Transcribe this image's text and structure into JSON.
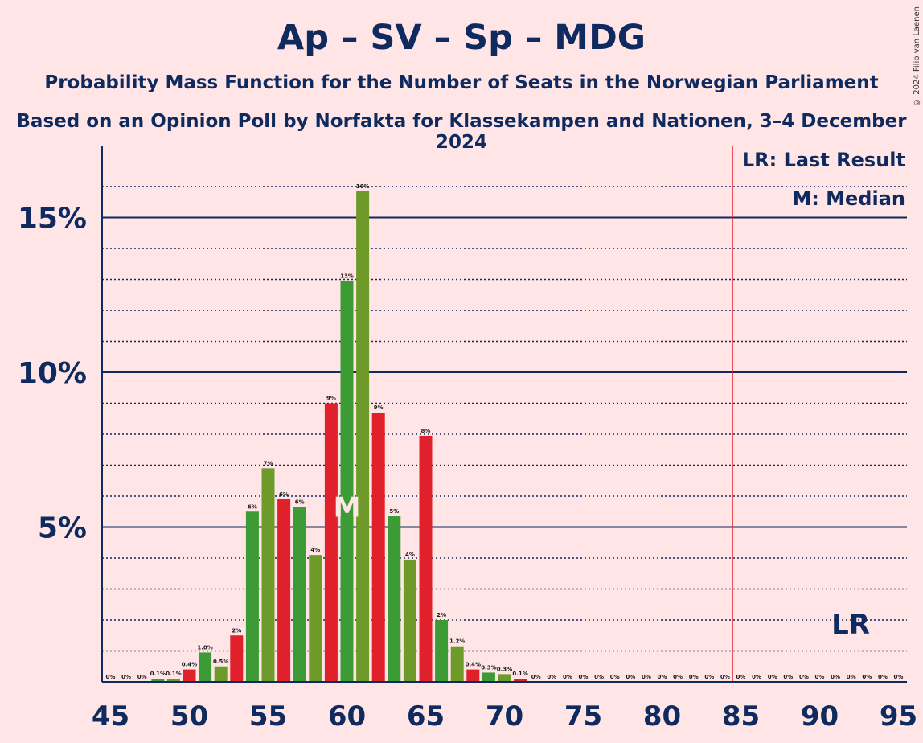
{
  "title": "Ap – SV – Sp – MDG",
  "subtitle_line1": "Probability Mass Function for the Number of Seats in the Norwegian Parliament",
  "subtitle_line2": "Based on an Opinion Poll by Norfakta for Klassekampen and Nationen, 3–4 December 2024",
  "copyright": "© 2024 Filip van Laenen",
  "legend": {
    "last_result": "LR: Last Result",
    "median": "M: Median"
  },
  "colors": {
    "background": "#FFE5E6",
    "axis": "#0E2A5E",
    "green": "#3D9B35",
    "olive": "#6E9A2A",
    "red": "#E0202A",
    "lr_line": "#E0202A"
  },
  "chart_data": {
    "type": "bar",
    "x_range": [
      45,
      95
    ],
    "x_ticks": [
      45,
      50,
      55,
      60,
      65,
      70,
      75,
      80,
      85,
      90,
      95
    ],
    "y_range": [
      0,
      17
    ],
    "y_ticks": [
      {
        "value": 5,
        "label": "5%"
      },
      {
        "value": 10,
        "label": "10%"
      },
      {
        "value": 15,
        "label": "15%"
      }
    ],
    "median_seat": 60,
    "median_label": "M",
    "last_result_seat": 85,
    "last_result_label": "LR",
    "bars": [
      {
        "seat": 45,
        "value": 0,
        "label": "0%"
      },
      {
        "seat": 46,
        "value": 0,
        "label": "0%"
      },
      {
        "seat": 47,
        "value": 0,
        "label": "0%"
      },
      {
        "seat": 48,
        "value": 0.1,
        "label": "0.1%"
      },
      {
        "seat": 49,
        "value": 0.1,
        "label": "0.1%"
      },
      {
        "seat": 50,
        "value": 0.4,
        "label": "0.4%"
      },
      {
        "seat": 51,
        "value": 0.95,
        "label": "1.0%"
      },
      {
        "seat": 52,
        "value": 0.5,
        "label": "0.5%"
      },
      {
        "seat": 53,
        "value": 1.5,
        "label": "2%"
      },
      {
        "seat": 54,
        "value": 5.5,
        "label": "6%"
      },
      {
        "seat": 55,
        "value": 6.9,
        "label": "7%"
      },
      {
        "seat": 56,
        "value": 5.9,
        "label": "6%"
      },
      {
        "seat": 57,
        "value": 5.65,
        "label": "6%"
      },
      {
        "seat": 58,
        "value": 4.1,
        "label": "4%"
      },
      {
        "seat": 59,
        "value": 9.0,
        "label": "9%"
      },
      {
        "seat": 60,
        "value": 12.95,
        "label": "13%"
      },
      {
        "seat": 61,
        "value": 15.85,
        "label": "16%"
      },
      {
        "seat": 62,
        "value": 8.7,
        "label": "9%"
      },
      {
        "seat": 63,
        "value": 5.35,
        "label": "5%"
      },
      {
        "seat": 64,
        "value": 3.95,
        "label": "4%"
      },
      {
        "seat": 65,
        "value": 7.95,
        "label": "8%"
      },
      {
        "seat": 66,
        "value": 2.0,
        "label": "2%"
      },
      {
        "seat": 67,
        "value": 1.15,
        "label": "1.2%"
      },
      {
        "seat": 68,
        "value": 0.4,
        "label": "0.4%"
      },
      {
        "seat": 69,
        "value": 0.3,
        "label": "0.3%"
      },
      {
        "seat": 70,
        "value": 0.25,
        "label": "0.3%"
      },
      {
        "seat": 71,
        "value": 0.1,
        "label": "0.1%"
      },
      {
        "seat": 72,
        "value": 0,
        "label": "0%"
      },
      {
        "seat": 73,
        "value": 0,
        "label": "0%"
      },
      {
        "seat": 74,
        "value": 0,
        "label": "0%"
      },
      {
        "seat": 75,
        "value": 0,
        "label": "0%"
      },
      {
        "seat": 76,
        "value": 0,
        "label": "0%"
      },
      {
        "seat": 77,
        "value": 0,
        "label": "0%"
      },
      {
        "seat": 78,
        "value": 0,
        "label": "0%"
      },
      {
        "seat": 79,
        "value": 0,
        "label": "0%"
      },
      {
        "seat": 80,
        "value": 0,
        "label": "0%"
      },
      {
        "seat": 81,
        "value": 0,
        "label": "0%"
      },
      {
        "seat": 82,
        "value": 0,
        "label": "0%"
      },
      {
        "seat": 83,
        "value": 0,
        "label": "0%"
      },
      {
        "seat": 84,
        "value": 0,
        "label": "0%"
      },
      {
        "seat": 85,
        "value": 0,
        "label": "0%"
      },
      {
        "seat": 86,
        "value": 0,
        "label": "0%"
      },
      {
        "seat": 87,
        "value": 0,
        "label": "0%"
      },
      {
        "seat": 88,
        "value": 0,
        "label": "0%"
      },
      {
        "seat": 89,
        "value": 0,
        "label": "0%"
      },
      {
        "seat": 90,
        "value": 0,
        "label": "0%"
      },
      {
        "seat": 91,
        "value": 0,
        "label": "0%"
      },
      {
        "seat": 92,
        "value": 0,
        "label": "0%"
      },
      {
        "seat": 93,
        "value": 0,
        "label": "0%"
      },
      {
        "seat": 94,
        "value": 0,
        "label": "0%"
      },
      {
        "seat": 95,
        "value": 0,
        "label": "0%"
      }
    ]
  }
}
